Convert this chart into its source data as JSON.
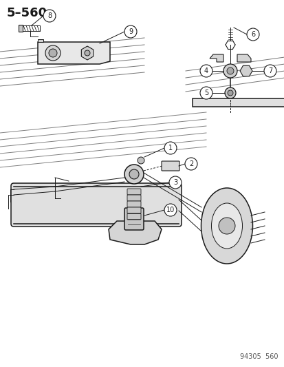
{
  "title": "5–560",
  "footer": "94305  560",
  "bg_color": "#ffffff",
  "line_color": "#1a1a1a",
  "title_fontsize": 13,
  "footer_fontsize": 7,
  "fig_width": 4.14,
  "fig_height": 5.33,
  "dpi": 100
}
